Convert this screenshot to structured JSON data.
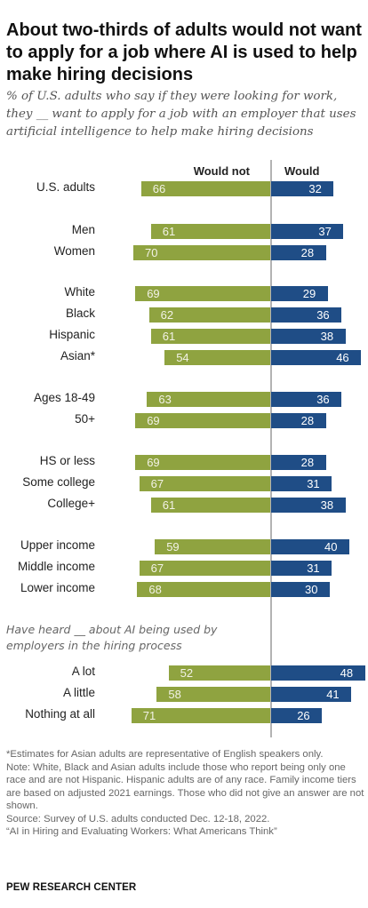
{
  "title": "About two-thirds of adults would not want to apply for a job where AI is used to help make hiring decisions",
  "subtitle": "% of U.S. adults who say if they were looking for work, they __ want to apply for a job with an employer that uses artificial intelligence to help make hiring decisions",
  "colors": {
    "would_not": "#8fa340",
    "would": "#1f4d86",
    "label_on_green": "#f2f2e6",
    "label_on_blue": "#ffffff"
  },
  "chart_data": {
    "type": "bar",
    "orientation": "horizontal-diverging",
    "legend_position": "top",
    "series_names": [
      "Would not",
      "Would"
    ],
    "rows": [
      {
        "label": "U.S. adults",
        "would_not": 66,
        "would": 32
      },
      {
        "label": "Men",
        "would_not": 61,
        "would": 37
      },
      {
        "label": "Women",
        "would_not": 70,
        "would": 28
      },
      {
        "label": "White",
        "would_not": 69,
        "would": 29
      },
      {
        "label": "Black",
        "would_not": 62,
        "would": 36
      },
      {
        "label": "Hispanic",
        "would_not": 61,
        "would": 38
      },
      {
        "label": "Asian*",
        "would_not": 54,
        "would": 46
      },
      {
        "label": "Ages 18-49",
        "would_not": 63,
        "would": 36
      },
      {
        "label": "50+",
        "would_not": 69,
        "would": 28
      },
      {
        "label": "HS or less",
        "would_not": 69,
        "would": 28
      },
      {
        "label": "Some college",
        "would_not": 67,
        "would": 31
      },
      {
        "label": "College+",
        "would_not": 61,
        "would": 38
      },
      {
        "label": "Upper income",
        "would_not": 59,
        "would": 40
      },
      {
        "label": "Middle income",
        "would_not": 67,
        "would": 31
      },
      {
        "label": "Lower income",
        "would_not": 68,
        "would": 30
      },
      {
        "label": "A lot",
        "would_not": 52,
        "would": 48
      },
      {
        "label": "A little",
        "would_not": 58,
        "would": 41
      },
      {
        "label": "Nothing at all",
        "would_not": 71,
        "would": 26
      }
    ],
    "group_note": "Have heard __ about AI being used by employers in the hiring process"
  },
  "footnotes": [
    "*Estimates for Asian adults are representative of English speakers only.",
    "Note: White, Black and Asian adults include those who report being only one race and are not Hispanic. Hispanic adults are of any race. Family income tiers are based on adjusted 2021 earnings. Those who did not give an answer are not shown.",
    "Source: Survey of U.S. adults conducted Dec. 12-18, 2022.",
    "“AI in Hiring and Evaluating Workers: What Americans Think”"
  ],
  "brand": "PEW RESEARCH CENTER"
}
